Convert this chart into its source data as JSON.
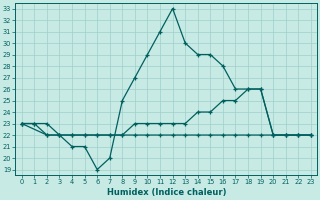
{
  "xlabel": "Humidex (Indice chaleur)",
  "background_color": "#c8eae4",
  "grid_color": "#9ecfca",
  "line_color": "#006060",
  "xlim": [
    -0.5,
    23.5
  ],
  "ylim": [
    18.5,
    33.5
  ],
  "yticks": [
    19,
    20,
    21,
    22,
    23,
    24,
    25,
    26,
    27,
    28,
    29,
    30,
    31,
    32,
    33
  ],
  "xticks": [
    0,
    1,
    2,
    3,
    4,
    5,
    6,
    7,
    8,
    9,
    10,
    11,
    12,
    13,
    14,
    15,
    16,
    17,
    18,
    19,
    20,
    21,
    22,
    23
  ],
  "line1_x": [
    0,
    1,
    2,
    3,
    4,
    5,
    6,
    7,
    8,
    9,
    10,
    11,
    12,
    13,
    14,
    15,
    16,
    17,
    18,
    19,
    20,
    21,
    22,
    23
  ],
  "line1_y": [
    23,
    23,
    22,
    22,
    21,
    21,
    19,
    20,
    25,
    27,
    29,
    31,
    33,
    30,
    29,
    29,
    28,
    26,
    26,
    26,
    22,
    22,
    22,
    22
  ],
  "line2_x": [
    0,
    1,
    2,
    3,
    4,
    5,
    6,
    7,
    8,
    9,
    10,
    11,
    12,
    13,
    14,
    15,
    16,
    17,
    18,
    19,
    20,
    21,
    22,
    23
  ],
  "line2_y": [
    23,
    23,
    23,
    22,
    22,
    22,
    22,
    22,
    22,
    23,
    23,
    23,
    23,
    23,
    24,
    24,
    25,
    25,
    26,
    26,
    22,
    22,
    22,
    22
  ],
  "line3_x": [
    0,
    2,
    3,
    4,
    5,
    6,
    7,
    8,
    9,
    10,
    11,
    12,
    13,
    14,
    15,
    16,
    17,
    18,
    19,
    20,
    21,
    22,
    23
  ],
  "line3_y": [
    23,
    22,
    22,
    22,
    22,
    22,
    22,
    22,
    22,
    22,
    22,
    22,
    22,
    22,
    22,
    22,
    22,
    22,
    22,
    22,
    22,
    22,
    22
  ]
}
